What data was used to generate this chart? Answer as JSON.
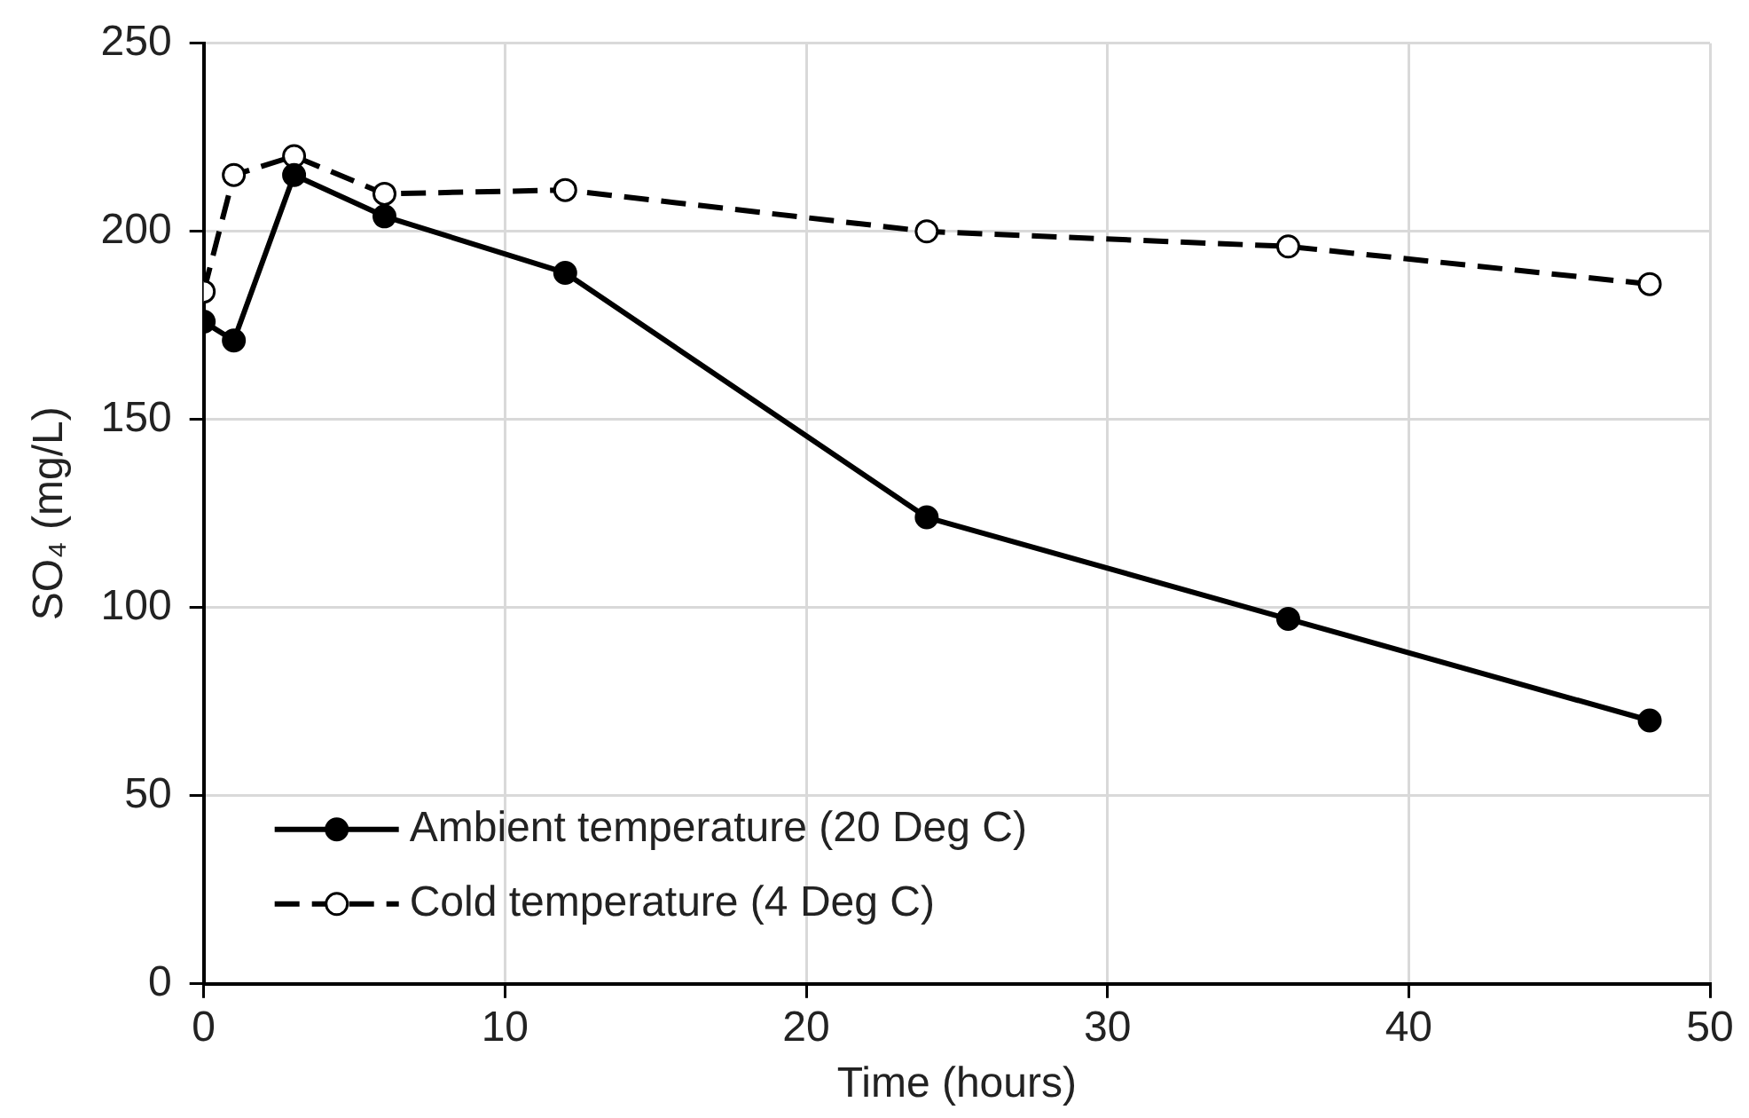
{
  "chart_data": {
    "type": "line",
    "xlabel": "Time (hours)",
    "ylabel": "SO₄ (mg/L)",
    "x": [
      0,
      1,
      3,
      6,
      12,
      24,
      36,
      48
    ],
    "series": [
      {
        "name": "Ambient temperature (20 Deg C)",
        "color": "#000000",
        "marker": "circle",
        "line_style": "solid",
        "values": [
          176,
          171,
          215,
          204,
          189,
          124,
          97,
          70
        ]
      },
      {
        "name": "Cold temperature (4 Deg C)",
        "color": "#000000",
        "marker": "circle",
        "line_style": "dashed",
        "values": [
          184,
          215,
          220,
          210,
          211,
          200,
          196,
          186
        ]
      }
    ],
    "xlim": [
      0,
      50
    ],
    "xticks": [
      0,
      10,
      20,
      30,
      40,
      50
    ],
    "ylim": [
      0,
      250
    ],
    "yticks": [
      0,
      50,
      100,
      150,
      200,
      250
    ],
    "grid": true,
    "legend": "bottom left"
  }
}
